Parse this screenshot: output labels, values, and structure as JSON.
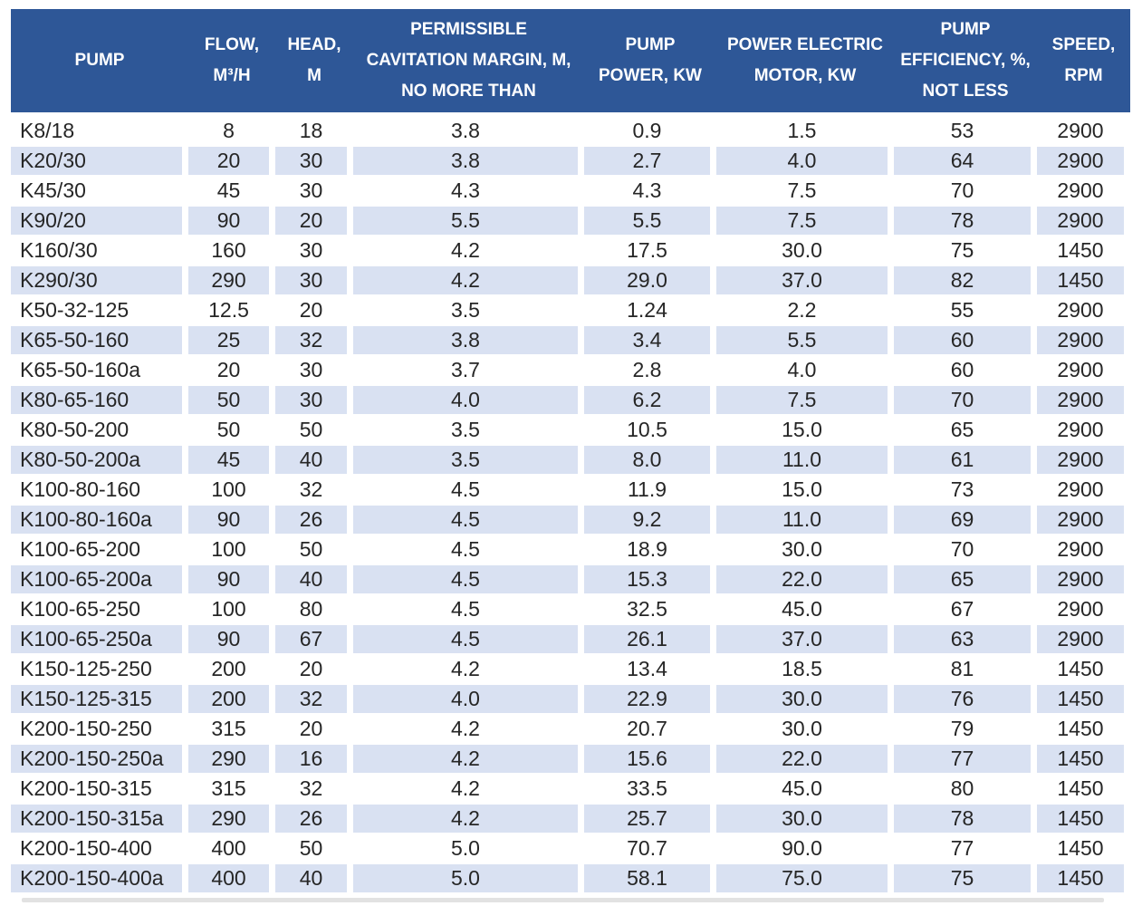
{
  "colors": {
    "header_bg": "#2e5797",
    "header_text": "#ffffff",
    "row_alt_bg": "#d9e1f2",
    "body_text": "#262626"
  },
  "table": {
    "columns": [
      "PUMP",
      "FLOW, M³/H",
      "HEAD, M",
      "PERMISSIBLE CAVITATION MARGIN, M, NO MORE THAN",
      "PUMP POWER, KW",
      "POWER ELECTRIC MOTOR, KW",
      "PUMP EFFICIENCY, %, NOT LESS",
      "SPEED, RPM"
    ],
    "column_keys": [
      "pump",
      "flow",
      "head",
      "cavitation-margin",
      "pump-power",
      "motor-power",
      "efficiency",
      "speed"
    ],
    "rows": [
      [
        "K8/18",
        "8",
        "18",
        "3.8",
        "0.9",
        "1.5",
        "53",
        "2900"
      ],
      [
        "K20/30",
        "20",
        "30",
        "3.8",
        "2.7",
        "4.0",
        "64",
        "2900"
      ],
      [
        "K45/30",
        "45",
        "30",
        "4.3",
        "4.3",
        "7.5",
        "70",
        "2900"
      ],
      [
        "K90/20",
        "90",
        "20",
        "5.5",
        "5.5",
        "7.5",
        "78",
        "2900"
      ],
      [
        "K160/30",
        "160",
        "30",
        "4.2",
        "17.5",
        "30.0",
        "75",
        "1450"
      ],
      [
        "K290/30",
        "290",
        "30",
        "4.2",
        "29.0",
        "37.0",
        "82",
        "1450"
      ],
      [
        "K50-32-125",
        "12.5",
        "20",
        "3.5",
        "1.24",
        "2.2",
        "55",
        "2900"
      ],
      [
        "K65-50-160",
        "25",
        "32",
        "3.8",
        "3.4",
        "5.5",
        "60",
        "2900"
      ],
      [
        "K65-50-160a",
        "20",
        "30",
        "3.7",
        "2.8",
        "4.0",
        "60",
        "2900"
      ],
      [
        "K80-65-160",
        "50",
        "30",
        "4.0",
        "6.2",
        "7.5",
        "70",
        "2900"
      ],
      [
        "K80-50-200",
        "50",
        "50",
        "3.5",
        "10.5",
        "15.0",
        "65",
        "2900"
      ],
      [
        "K80-50-200a",
        "45",
        "40",
        "3.5",
        "8.0",
        "11.0",
        "61",
        "2900"
      ],
      [
        "K100-80-160",
        "100",
        "32",
        "4.5",
        "11.9",
        "15.0",
        "73",
        "2900"
      ],
      [
        "K100-80-160a",
        "90",
        "26",
        "4.5",
        "9.2",
        "11.0",
        "69",
        "2900"
      ],
      [
        "K100-65-200",
        "100",
        "50",
        "4.5",
        "18.9",
        "30.0",
        "70",
        "2900"
      ],
      [
        "K100-65-200a",
        "90",
        "40",
        "4.5",
        "15.3",
        "22.0",
        "65",
        "2900"
      ],
      [
        "K100-65-250",
        "100",
        "80",
        "4.5",
        "32.5",
        "45.0",
        "67",
        "2900"
      ],
      [
        "K100-65-250a",
        "90",
        "67",
        "4.5",
        "26.1",
        "37.0",
        "63",
        "2900"
      ],
      [
        "K150-125-250",
        "200",
        "20",
        "4.2",
        "13.4",
        "18.5",
        "81",
        "1450"
      ],
      [
        "K150-125-315",
        "200",
        "32",
        "4.0",
        "22.9",
        "30.0",
        "76",
        "1450"
      ],
      [
        "K200-150-250",
        "315",
        "20",
        "4.2",
        "20.7",
        "30.0",
        "79",
        "1450"
      ],
      [
        "K200-150-250a",
        "290",
        "16",
        "4.2",
        "15.6",
        "22.0",
        "77",
        "1450"
      ],
      [
        "K200-150-315",
        "315",
        "32",
        "4.2",
        "33.5",
        "45.0",
        "80",
        "1450"
      ],
      [
        "K200-150-315a",
        "290",
        "26",
        "4.2",
        "25.7",
        "30.0",
        "78",
        "1450"
      ],
      [
        "K200-150-400",
        "400",
        "50",
        "5.0",
        "70.7",
        "90.0",
        "77",
        "1450"
      ],
      [
        "K200-150-400a",
        "400",
        "40",
        "5.0",
        "58.1",
        "75.0",
        "75",
        "1450"
      ]
    ]
  }
}
